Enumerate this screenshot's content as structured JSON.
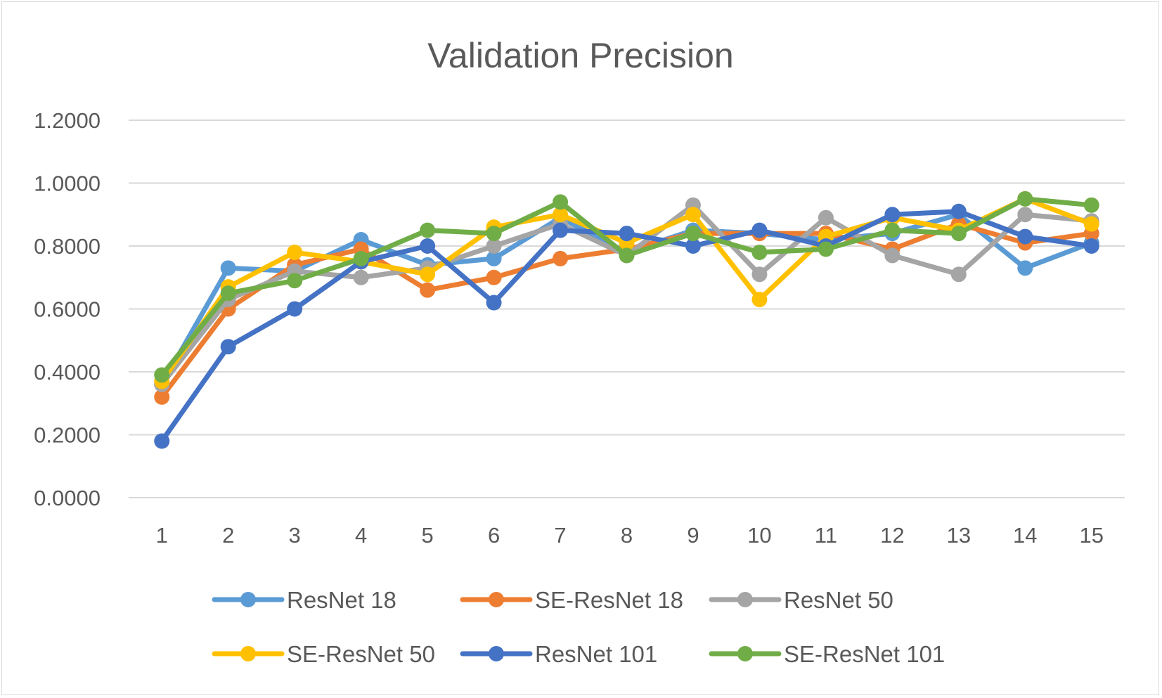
{
  "chart_data": {
    "type": "line",
    "title": "Validation Precision",
    "xlabel": "",
    "ylabel": "",
    "ylim": [
      0,
      1.2
    ],
    "yticks": [
      "0.0000",
      "0.2000",
      "0.4000",
      "0.6000",
      "0.8000",
      "1.0000",
      "1.2000"
    ],
    "categories": [
      "1",
      "2",
      "3",
      "4",
      "5",
      "6",
      "7",
      "8",
      "9",
      "10",
      "11",
      "12",
      "13",
      "14",
      "15"
    ],
    "grid": true,
    "legend_position": "bottom",
    "series": [
      {
        "name": "ResNet 18",
        "color": "#5b9bd5",
        "values": [
          0.36,
          0.73,
          0.72,
          0.82,
          0.74,
          0.76,
          0.89,
          0.78,
          0.85,
          0.84,
          0.82,
          0.84,
          0.9,
          0.73,
          0.81
        ]
      },
      {
        "name": "SE-ResNet 18",
        "color": "#ed7d31",
        "values": [
          0.32,
          0.6,
          0.74,
          0.79,
          0.66,
          0.7,
          0.76,
          0.79,
          0.84,
          0.84,
          0.84,
          0.79,
          0.87,
          0.81,
          0.84
        ]
      },
      {
        "name": "ResNet 50",
        "color": "#a5a5a5",
        "values": [
          0.36,
          0.63,
          0.72,
          0.7,
          0.73,
          0.8,
          0.87,
          0.77,
          0.93,
          0.71,
          0.89,
          0.77,
          0.71,
          0.9,
          0.88
        ]
      },
      {
        "name": "SE-ResNet 50",
        "color": "#ffc000",
        "values": [
          0.37,
          0.67,
          0.78,
          0.75,
          0.71,
          0.86,
          0.9,
          0.81,
          0.9,
          0.63,
          0.83,
          0.89,
          0.85,
          0.95,
          0.87
        ]
      },
      {
        "name": "ResNet 101",
        "color": "#4472c4",
        "values": [
          0.18,
          0.48,
          0.6,
          0.75,
          0.8,
          0.62,
          0.85,
          0.84,
          0.8,
          0.85,
          0.8,
          0.9,
          0.91,
          0.83,
          0.8
        ]
      },
      {
        "name": "SE-ResNet 101",
        "color": "#70ad47",
        "values": [
          0.39,
          0.65,
          0.69,
          0.76,
          0.85,
          0.84,
          0.94,
          0.77,
          0.84,
          0.78,
          0.79,
          0.85,
          0.84,
          0.95,
          0.93
        ]
      }
    ]
  }
}
